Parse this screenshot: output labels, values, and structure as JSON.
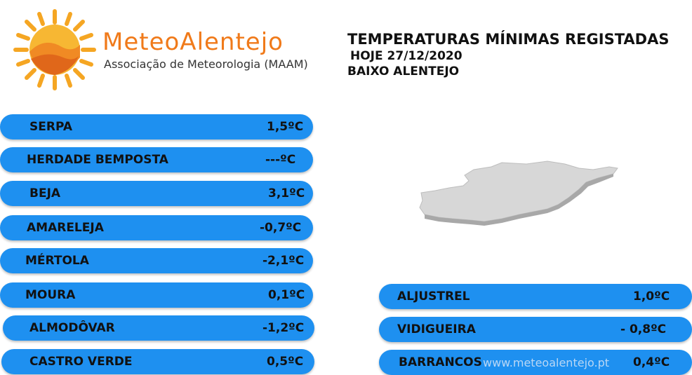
{
  "logo": {
    "name": "MeteoAlentejo",
    "subtitle": "Associação de Meteorologia (MAAM)"
  },
  "header": {
    "title": "TEMPERATURAS MÍNIMAS REGISTADAS",
    "date": "HOJE 27/12/2020",
    "region": "BAIXO ALENTEJO"
  },
  "colors": {
    "row_bg": "#1e90f0",
    "logo_orange": "#f07a1a"
  },
  "left_stations": [
    {
      "name": "SERPA",
      "value": "1,5ºC"
    },
    {
      "name": "HERDADE  BEMPOSTA",
      "value": "---ºC"
    },
    {
      "name": "BEJA",
      "value": "3,1ºC"
    },
    {
      "name": "AMARELEJA",
      "value": "-0,7ºC"
    },
    {
      "name": "MÉRTOLA",
      "value": "-2,1ºC"
    },
    {
      "name": "MOURA",
      "value": "0,1ºC"
    },
    {
      "name": "ALMODÔVAR",
      "value": "-1,2ºC"
    },
    {
      "name": "CASTRO VERDE",
      "value": "0,5ºC"
    }
  ],
  "right_stations": [
    {
      "name": "ALJUSTREL",
      "value": "1,0ºC"
    },
    {
      "name": "VIDIGUEIRA",
      "value": "- 0,8ºC"
    },
    {
      "name": "BARRANCOS",
      "value": "0,4ºC"
    }
  ],
  "watermark": "www.meteoalentejo.pt"
}
